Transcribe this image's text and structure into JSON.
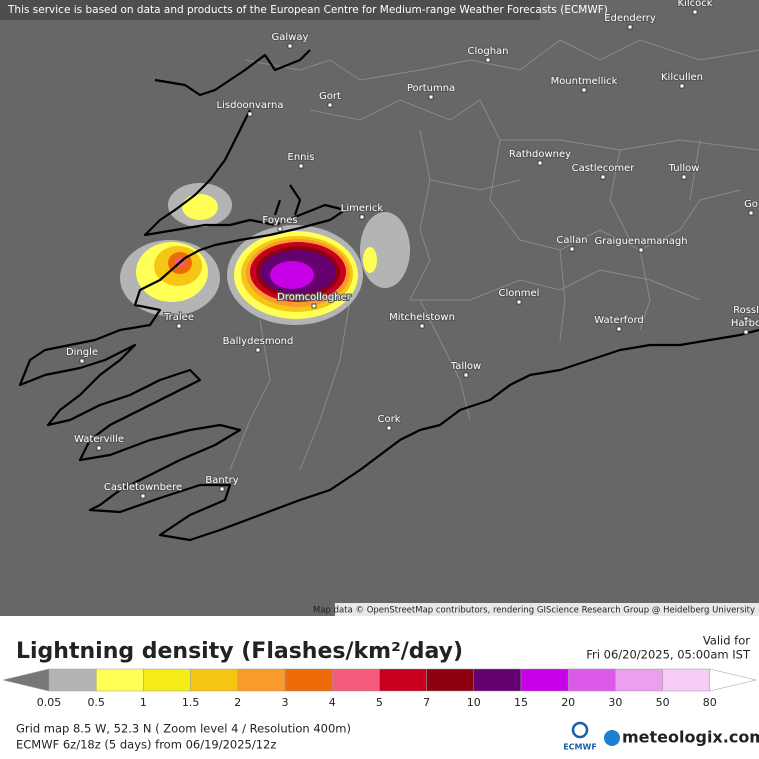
{
  "header": {
    "notice": "This service is based on data and products of the European Centre for Medium-range Weather Forecasts (ECMWF)"
  },
  "map": {
    "places": [
      "Kilcock",
      "Edenderry",
      "Galway",
      "Cloghan",
      "Kilcullen",
      "Mountmellick",
      "Portumna",
      "Gort",
      "Lisdoonvarna",
      "Ennis",
      "Rathdowney",
      "Castlecomer",
      "Tullow",
      "Go",
      "Limerick",
      "Foynes",
      "Callan",
      "Graiguenamanagh",
      "Clonmel",
      "Dromcollogher",
      "Tralee",
      "Mitchelstown",
      "Waterford",
      "Rossl",
      "Harbo",
      "Ballydesmond",
      "Dingle",
      "Tallow",
      "Cork",
      "Waterville",
      "Bantry",
      "Castletownbere"
    ],
    "attribution": "Map data © OpenStreetMap contributors, rendering GIScience Research Group @ Heidelberg University"
  },
  "legend": {
    "title": "Lightning density (Flashes/km²/day)",
    "valid_label": "Valid for",
    "valid_time": "Fri 06/20/2025, 05:00am IST",
    "under_color": "#777777",
    "items": [
      {
        "label": "0.05",
        "color": "#b4b4b4"
      },
      {
        "label": "0.5",
        "color": "#ffff55"
      },
      {
        "label": "1",
        "color": "#f5ec1a"
      },
      {
        "label": "1.5",
        "color": "#f6c614"
      },
      {
        "label": "2",
        "color": "#fb9a2c"
      },
      {
        "label": "3",
        "color": "#f06a0a"
      },
      {
        "label": "4",
        "color": "#f45a7a"
      },
      {
        "label": "5",
        "color": "#c8001e"
      },
      {
        "label": "7",
        "color": "#8c0010"
      },
      {
        "label": "10",
        "color": "#640070"
      },
      {
        "label": "15",
        "color": "#c800e8"
      },
      {
        "label": "20",
        "color": "#dc5ae8"
      },
      {
        "label": "30",
        "color": "#eba0ee"
      },
      {
        "label": "50",
        "color": "#f6cdf6"
      },
      {
        "label": "80",
        "color": "#ffffff"
      }
    ]
  },
  "footer": {
    "grid_info": "Grid map 8.5 W, 52.3 N ( Zoom level 4 / Resolution 400m)",
    "model_info": "ECMWF 6z/18z (5 days) from 06/19/2025/12z",
    "ecmwf_logo": "ECMWF",
    "brand": "meteologix.com"
  }
}
